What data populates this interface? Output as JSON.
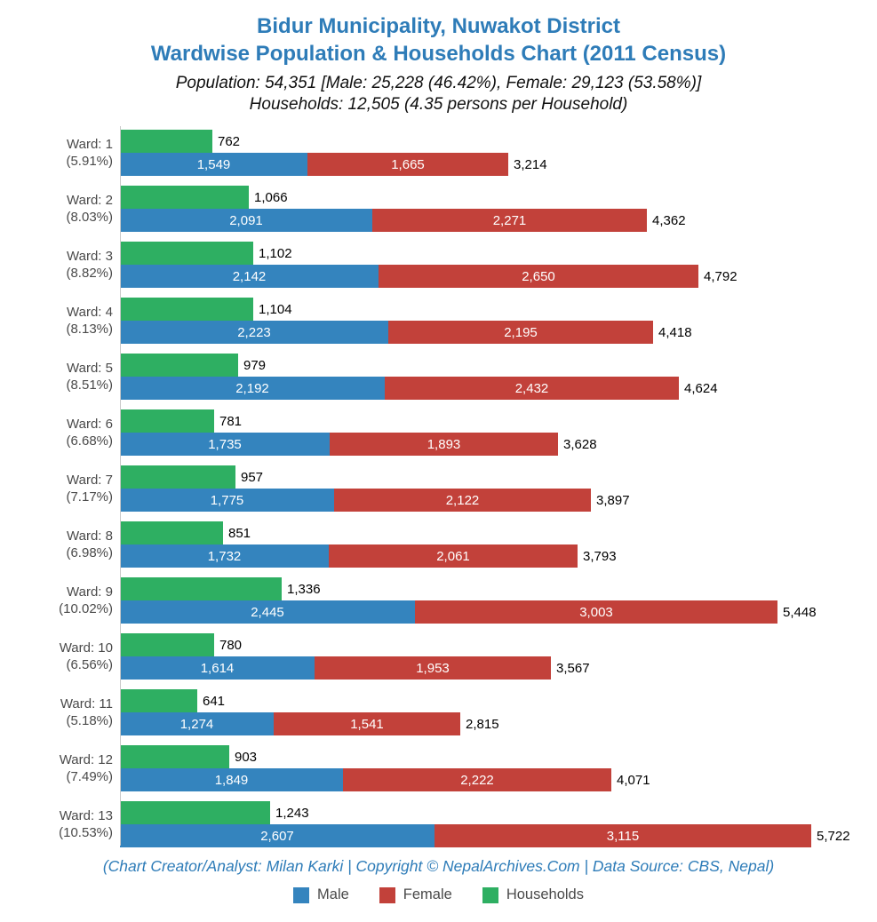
{
  "header": {
    "title_line1": "Bidur Municipality, Nuwakot District",
    "title_line2": "Wardwise Population & Households Chart (2011 Census)",
    "subtitle_line1": "Population: 54,351 [Male: 25,228 (46.42%), Female: 29,123 (53.58%)]",
    "subtitle_line2": "Households: 12,505 (4.35 persons per Household)"
  },
  "footer": {
    "credit": "(Chart Creator/Analyst: Milan Karki | Copyright © NepalArchives.Com | Data Source: CBS, Nepal)"
  },
  "legend": {
    "items": [
      {
        "label": "Male",
        "color": "#3484BE"
      },
      {
        "label": "Female",
        "color": "#C2413A"
      },
      {
        "label": "Households",
        "color": "#2EAF62"
      }
    ]
  },
  "colors": {
    "male": "#3484BE",
    "female": "#C2413A",
    "households": "#2EAF62",
    "title_blue": "#2E7CB8",
    "axis": "#C9C9C9",
    "ward_label": "#4A4A4A"
  },
  "chart_data": {
    "type": "bar",
    "orientation": "horizontal",
    "stacked": true,
    "title": "Bidur Municipality, Nuwakot District — Wardwise Population & Households Chart (2011 Census)",
    "legend_position": "bottom",
    "grid": false,
    "max_value": 5722,
    "series": [
      {
        "name": "Male",
        "values": [
          1549,
          2091,
          2142,
          2223,
          2192,
          1735,
          1775,
          1732,
          2445,
          1614,
          1274,
          1849,
          2607
        ]
      },
      {
        "name": "Female",
        "values": [
          1665,
          2271,
          2650,
          2195,
          2432,
          1893,
          2122,
          2061,
          3003,
          1953,
          1541,
          2222,
          3115
        ]
      },
      {
        "name": "Households",
        "values": [
          762,
          1066,
          1102,
          1104,
          979,
          781,
          957,
          851,
          1336,
          780,
          641,
          903,
          1243
        ]
      }
    ],
    "wards": [
      {
        "ward": "Ward: 1",
        "percent": "(5.91%)",
        "households": 762,
        "male": 1549,
        "female": 1665,
        "total": 3214,
        "households_label": "762",
        "male_label": "1,549",
        "female_label": "1,665",
        "total_label": "3,214"
      },
      {
        "ward": "Ward: 2",
        "percent": "(8.03%)",
        "households": 1066,
        "male": 2091,
        "female": 2271,
        "total": 4362,
        "households_label": "1,066",
        "male_label": "2,091",
        "female_label": "2,271",
        "total_label": "4,362"
      },
      {
        "ward": "Ward: 3",
        "percent": "(8.82%)",
        "households": 1102,
        "male": 2142,
        "female": 2650,
        "total": 4792,
        "households_label": "1,102",
        "male_label": "2,142",
        "female_label": "2,650",
        "total_label": "4,792"
      },
      {
        "ward": "Ward: 4",
        "percent": "(8.13%)",
        "households": 1104,
        "male": 2223,
        "female": 2195,
        "total": 4418,
        "households_label": "1,104",
        "male_label": "2,223",
        "female_label": "2,195",
        "total_label": "4,418"
      },
      {
        "ward": "Ward: 5",
        "percent": "(8.51%)",
        "households": 979,
        "male": 2192,
        "female": 2432,
        "total": 4624,
        "households_label": "979",
        "male_label": "2,192",
        "female_label": "2,432",
        "total_label": "4,624"
      },
      {
        "ward": "Ward: 6",
        "percent": "(6.68%)",
        "households": 781,
        "male": 1735,
        "female": 1893,
        "total": 3628,
        "households_label": "781",
        "male_label": "1,735",
        "female_label": "1,893",
        "total_label": "3,628"
      },
      {
        "ward": "Ward: 7",
        "percent": "(7.17%)",
        "households": 957,
        "male": 1775,
        "female": 2122,
        "total": 3897,
        "households_label": "957",
        "male_label": "1,775",
        "female_label": "2,122",
        "total_label": "3,897"
      },
      {
        "ward": "Ward: 8",
        "percent": "(6.98%)",
        "households": 851,
        "male": 1732,
        "female": 2061,
        "total": 3793,
        "households_label": "851",
        "male_label": "1,732",
        "female_label": "2,061",
        "total_label": "3,793"
      },
      {
        "ward": "Ward: 9",
        "percent": "(10.02%)",
        "households": 1336,
        "male": 2445,
        "female": 3003,
        "total": 5448,
        "households_label": "1,336",
        "male_label": "2,445",
        "female_label": "3,003",
        "total_label": "5,448"
      },
      {
        "ward": "Ward: 10",
        "percent": "(6.56%)",
        "households": 780,
        "male": 1614,
        "female": 1953,
        "total": 3567,
        "households_label": "780",
        "male_label": "1,614",
        "female_label": "1,953",
        "total_label": "3,567"
      },
      {
        "ward": "Ward: 11",
        "percent": "(5.18%)",
        "households": 641,
        "male": 1274,
        "female": 1541,
        "total": 2815,
        "households_label": "641",
        "male_label": "1,274",
        "female_label": "1,541",
        "total_label": "2,815"
      },
      {
        "ward": "Ward: 12",
        "percent": "(7.49%)",
        "households": 903,
        "male": 1849,
        "female": 2222,
        "total": 4071,
        "households_label": "903",
        "male_label": "1,849",
        "female_label": "2,222",
        "total_label": "4,071"
      },
      {
        "ward": "Ward: 13",
        "percent": "(10.53%)",
        "households": 1243,
        "male": 2607,
        "female": 3115,
        "total": 5722,
        "households_label": "1,243",
        "male_label": "2,607",
        "female_label": "3,115",
        "total_label": "5,722"
      }
    ]
  }
}
